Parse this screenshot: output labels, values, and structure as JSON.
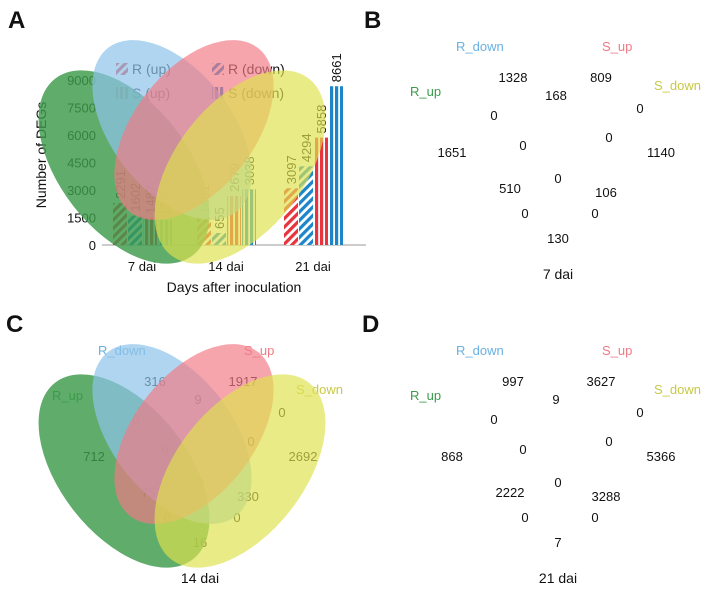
{
  "panels": {
    "a": "A",
    "b": "B",
    "c": "C",
    "d": "D"
  },
  "colors": {
    "red": "#e8343f",
    "blue": "#1c86c9",
    "green": "#3c9a4a",
    "light_blue": "#8fc3ea",
    "pink": "#f27a86",
    "yellow": "#dfe24e",
    "r_up_label": "#3c9a4a",
    "r_down_label": "#6ab0e0",
    "s_up_label": "#f07a84",
    "s_down_label": "#c9c845"
  },
  "chart_data": {
    "type": "bar",
    "title": "",
    "xlabel": "Days after inoculation",
    "ylabel": "Number of DEGs",
    "categories": [
      "7 dai",
      "14 dai",
      "21 dai"
    ],
    "yticks": [
      "0",
      "1500",
      "3000",
      "4500",
      "6000",
      "7500",
      "9000"
    ],
    "ylim": [
      0,
      9000
    ],
    "legend_position": "top",
    "series": [
      {
        "name": "R (up)",
        "pattern": "diagonal-stripes",
        "color": "red",
        "values": [
          2291,
          1481,
          3097
        ],
        "labels": [
          "2291",
          "1481",
          "3097"
        ]
      },
      {
        "name": "R (down)",
        "pattern": "diagonal-stripes",
        "color": "blue",
        "values": [
          1602,
          655,
          4294
        ],
        "labels": [
          "1602",
          "655",
          "4294"
        ]
      },
      {
        "name": "S (up)",
        "pattern": "vertical-stripes",
        "color": "red",
        "values": [
          1487,
          2679,
          5858
        ],
        "labels": [
          "1487",
          "2679",
          "5858"
        ]
      },
      {
        "name": "S (down)",
        "pattern": "vertical-stripes",
        "color": "blue",
        "values": [
          1376,
          3038,
          8661
        ],
        "labels": [
          "1376",
          "3038",
          "8661"
        ]
      }
    ]
  },
  "venn_data": {
    "set_names": {
      "r_up": "R_up",
      "r_down": "R_down",
      "s_up": "S_up",
      "s_down": "S_down"
    },
    "diagrams": [
      {
        "caption": "7 dai",
        "counts": {
          "r_down_only": "1328",
          "s_up_only": "809",
          "r_up_only": "1651",
          "s_down_only": "1140",
          "rdown_sup": "168",
          "rup_rdown": "0",
          "sup_sdown": "0",
          "rup_rdown_sup": "0",
          "rdown_sup_sdown": "0",
          "all": "0",
          "rup_sup": "510",
          "rdown_sdown": "106",
          "rup_sup_sdown": "0",
          "rup_rdown_sdown": "0",
          "rup_sdown": "130"
        }
      },
      {
        "caption": "14 dai",
        "counts": {
          "r_down_only": "316",
          "s_up_only": "1917",
          "r_up_only": "712",
          "s_down_only": "2692",
          "rdown_sup": "9",
          "rup_rdown": "0",
          "sup_sdown": "0",
          "rup_rdown_sup": "0",
          "rdown_sup_sdown": "0",
          "all": "0",
          "rup_sup": "753",
          "rdown_sdown": "330",
          "rup_sup_sdown": "0",
          "rup_rdown_sdown": "0",
          "rup_sdown": "16"
        }
      },
      {
        "caption": "21 dai",
        "counts": {
          "r_down_only": "997",
          "s_up_only": "3627",
          "r_up_only": "868",
          "s_down_only": "5366",
          "rdown_sup": "9",
          "rup_rdown": "0",
          "sup_sdown": "0",
          "rup_rdown_sup": "0",
          "rdown_sup_sdown": "0",
          "all": "0",
          "rup_sup": "2222",
          "rdown_sdown": "3288",
          "rup_sup_sdown": "0",
          "rup_rdown_sdown": "0",
          "rup_sdown": "7"
        }
      }
    ]
  }
}
